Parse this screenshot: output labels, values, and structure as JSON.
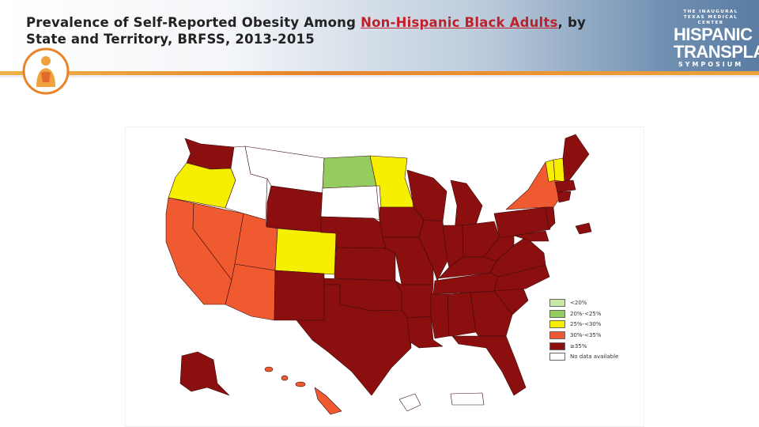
{
  "header": {
    "title_line1_prefix": "Prevalence of Self-Reported Obesity Among ",
    "title_link": "Non-Hispanic Black Adults",
    "title_line1_suffix": ", by",
    "title_line2": "State and Territory, BRFSS, 2013-2015"
  },
  "symposium_logo": {
    "line1": "THE INAUGURAL",
    "line2": "TEXAS MEDICAL CENTER",
    "word1": "HISPANIC",
    "word2": "TRANSPLANT",
    "word3": "SYMPOSIUM"
  },
  "colors": {
    "cat_lt20": "#c8e6a6",
    "cat_20_25": "#94cc60",
    "cat_25_30": "#f6f000",
    "cat_30_35": "#f05a30",
    "cat_gte35": "#8b0f0f",
    "cat_nodata": "#ffffff",
    "header_accent": "#e8842a",
    "title_link": "#c0202b"
  },
  "legend": [
    {
      "key": "cat_lt20",
      "label": "<20%"
    },
    {
      "key": "cat_20_25",
      "label": "20%-<25%"
    },
    {
      "key": "cat_25_30",
      "label": "25%-<30%"
    },
    {
      "key": "cat_30_35",
      "label": "30%-<35%"
    },
    {
      "key": "cat_gte35",
      "label": "≥35%"
    },
    {
      "key": "cat_nodata",
      "label": "No data available"
    }
  ],
  "states": {
    "WA": "cat_gte35",
    "OR": "cat_25_30",
    "CA": "cat_30_35",
    "NV": "cat_30_35",
    "ID": "cat_nodata",
    "MT": "cat_nodata",
    "WY": "cat_gte35",
    "UT": "cat_30_35",
    "AZ": "cat_30_35",
    "CO": "cat_25_30",
    "NM": "cat_gte35",
    "ND": "cat_20_25",
    "SD": "cat_nodata",
    "NE": "cat_gte35",
    "KS": "cat_gte35",
    "OK": "cat_gte35",
    "TX": "cat_gte35",
    "MN": "cat_25_30",
    "IA": "cat_gte35",
    "MO": "cat_gte35",
    "AR": "cat_gte35",
    "LA": "cat_gte35",
    "WI": "cat_gte35",
    "IL": "cat_gte35",
    "MI": "cat_gte35",
    "IN": "cat_gte35",
    "OH": "cat_gte35",
    "KY": "cat_gte35",
    "TN": "cat_gte35",
    "MS": "cat_gte35",
    "AL": "cat_gte35",
    "GA": "cat_gte35",
    "FL": "cat_gte35",
    "SC": "cat_gte35",
    "NC": "cat_gte35",
    "VA": "cat_gte35",
    "WV": "cat_gte35",
    "PA": "cat_gte35",
    "NY": "cat_30_35",
    "VT": "cat_25_30",
    "NH": "cat_25_30",
    "ME": "cat_gte35",
    "MA": "cat_gte35",
    "CT": "cat_gte35",
    "NJ": "cat_gte35",
    "MD": "cat_gte35",
    "DC": "cat_gte35",
    "AK": "cat_gte35",
    "HI": "cat_30_35",
    "GU": "cat_nodata",
    "PR": "cat_nodata"
  }
}
